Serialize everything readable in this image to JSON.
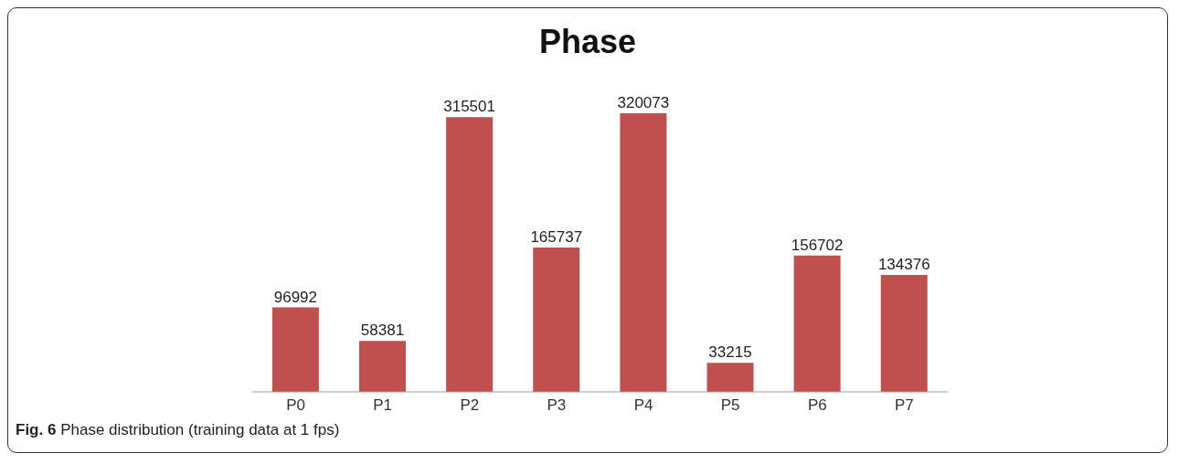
{
  "chart_data": {
    "type": "bar",
    "title": "Phase",
    "categories": [
      "P0",
      "P1",
      "P2",
      "P3",
      "P4",
      "P5",
      "P6",
      "P7"
    ],
    "values": [
      96992,
      58381,
      315501,
      165737,
      320073,
      33215,
      156702,
      134376
    ],
    "color": "#c0504d",
    "data_labels": true,
    "annotations": [
      "Fig. 6 Phase distribution (training data at 1 fps)"
    ]
  }
}
